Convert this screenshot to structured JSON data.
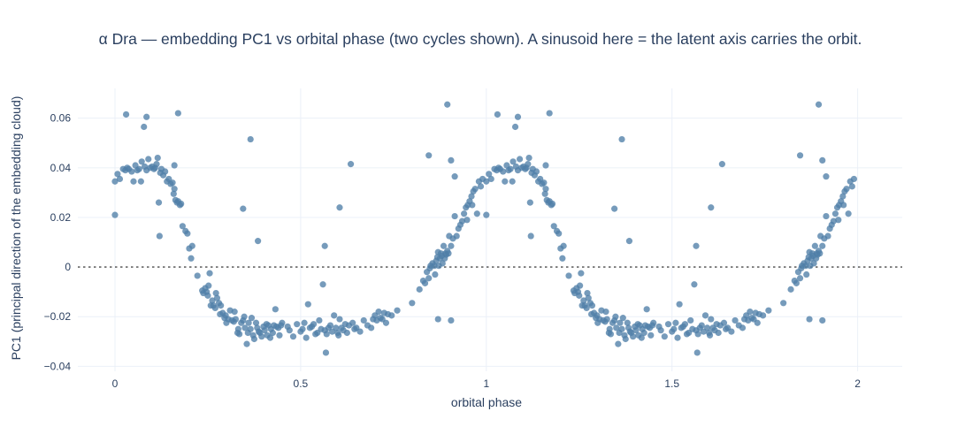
{
  "chart_data": {
    "type": "scatter",
    "title": "α Dra — embedding PC1 vs orbital phase (two cycles shown). A sinusoid here = the latent axis carries the orbit.",
    "xlabel": "orbital phase",
    "ylabel": "PC1 (principal direction of the embedding cloud)",
    "xlim": [
      -0.1,
      2.12
    ],
    "ylim": [
      -0.042,
      0.072
    ],
    "x_ticks": [
      0,
      0.5,
      1,
      1.5,
      2
    ],
    "x_tick_labels": [
      "0",
      "0.5",
      "1",
      "1.5",
      "2"
    ],
    "y_ticks": [
      -0.04,
      -0.02,
      0,
      0.02,
      0.04,
      0.06
    ],
    "y_tick_labels": [
      "−0.04",
      "−0.02",
      "0",
      "0.02",
      "0.04",
      "0.06"
    ],
    "grid": true,
    "reference_line": {
      "y": 0,
      "style": "dotted"
    },
    "marker_color": "#4f7fa8",
    "series": [
      {
        "points": [
          [
            0.0,
            0.0345
          ],
          [
            0.0,
            0.021
          ],
          [
            0.007,
            0.0375
          ],
          [
            0.013,
            0.0355
          ],
          [
            0.022,
            0.0395
          ],
          [
            0.028,
            0.039
          ],
          [
            0.033,
            0.04
          ],
          [
            0.037,
            0.0395
          ],
          [
            0.045,
            0.0385
          ],
          [
            0.05,
            0.0345
          ],
          [
            0.055,
            0.041
          ],
          [
            0.06,
            0.039
          ],
          [
            0.065,
            0.0395
          ],
          [
            0.07,
            0.0345
          ],
          [
            0.072,
            0.0425
          ],
          [
            0.08,
            0.0405
          ],
          [
            0.085,
            0.039
          ],
          [
            0.09,
            0.0435
          ],
          [
            0.095,
            0.04
          ],
          [
            0.1,
            0.0405
          ],
          [
            0.105,
            0.0395
          ],
          [
            0.108,
            0.04
          ],
          [
            0.112,
            0.0415
          ],
          [
            0.115,
            0.044
          ],
          [
            0.118,
            0.026
          ],
          [
            0.122,
            0.038
          ],
          [
            0.125,
            0.0395
          ],
          [
            0.13,
            0.037
          ],
          [
            0.135,
            0.0385
          ],
          [
            0.14,
            0.0345
          ],
          [
            0.145,
            0.0355
          ],
          [
            0.15,
            0.0335
          ],
          [
            0.155,
            0.034
          ],
          [
            0.158,
            0.0295
          ],
          [
            0.16,
            0.041
          ],
          [
            0.163,
            0.027
          ],
          [
            0.167,
            0.026
          ],
          [
            0.17,
            0.0265
          ],
          [
            0.175,
            0.025
          ],
          [
            0.178,
            0.0255
          ],
          [
            0.182,
            0.0165
          ],
          [
            0.19,
            0.0145
          ],
          [
            0.195,
            0.0135
          ],
          [
            0.2,
            0.0075
          ],
          [
            0.205,
            0.0035
          ],
          [
            0.208,
            0.0085
          ],
          [
            0.222,
            -0.0035
          ],
          [
            0.235,
            -0.0095
          ],
          [
            0.238,
            -0.0105
          ],
          [
            0.243,
            -0.0085
          ],
          [
            0.247,
            -0.01
          ],
          [
            0.25,
            -0.0115
          ],
          [
            0.252,
            -0.0075
          ],
          [
            0.255,
            -0.0025
          ],
          [
            0.258,
            -0.0155
          ],
          [
            0.262,
            -0.0135
          ],
          [
            0.265,
            -0.0155
          ],
          [
            0.27,
            -0.0165
          ],
          [
            0.272,
            -0.0105
          ],
          [
            0.275,
            -0.0125
          ],
          [
            0.28,
            -0.0145
          ],
          [
            0.283,
            -0.019
          ],
          [
            0.285,
            -0.0155
          ],
          [
            0.29,
            -0.0185
          ],
          [
            0.295,
            -0.0205
          ],
          [
            0.298,
            -0.0195
          ],
          [
            0.3,
            -0.0225
          ],
          [
            0.305,
            -0.021
          ],
          [
            0.31,
            -0.0175
          ],
          [
            0.315,
            -0.0215
          ],
          [
            0.32,
            -0.022
          ],
          [
            0.322,
            -0.018
          ],
          [
            0.325,
            -0.021
          ],
          [
            0.33,
            -0.0265
          ],
          [
            0.332,
            -0.025
          ],
          [
            0.335,
            -0.027
          ],
          [
            0.34,
            -0.0225
          ],
          [
            0.345,
            -0.0215
          ],
          [
            0.348,
            -0.02
          ],
          [
            0.35,
            -0.0245
          ],
          [
            0.355,
            -0.031
          ],
          [
            0.358,
            -0.0265
          ],
          [
            0.36,
            -0.0225
          ],
          [
            0.365,
            -0.025
          ],
          [
            0.368,
            -0.0205
          ],
          [
            0.372,
            -0.0275
          ],
          [
            0.375,
            -0.029
          ],
          [
            0.38,
            -0.0225
          ],
          [
            0.383,
            -0.0245
          ],
          [
            0.387,
            -0.026
          ],
          [
            0.39,
            -0.0265
          ],
          [
            0.395,
            -0.028
          ],
          [
            0.4,
            -0.024
          ],
          [
            0.403,
            -0.0255
          ],
          [
            0.408,
            -0.023
          ],
          [
            0.41,
            -0.0275
          ],
          [
            0.413,
            -0.0235
          ],
          [
            0.418,
            -0.0285
          ],
          [
            0.42,
            -0.025
          ],
          [
            0.425,
            -0.0265
          ],
          [
            0.428,
            -0.0235
          ],
          [
            0.432,
            -0.017
          ],
          [
            0.435,
            -0.024
          ],
          [
            0.44,
            -0.0245
          ],
          [
            0.443,
            -0.0275
          ],
          [
            0.447,
            -0.0235
          ],
          [
            0.45,
            -0.0225
          ],
          [
            0.465,
            -0.024
          ],
          [
            0.47,
            -0.0255
          ],
          [
            0.48,
            -0.028
          ],
          [
            0.49,
            -0.023
          ],
          [
            0.5,
            -0.026
          ],
          [
            0.505,
            -0.025
          ],
          [
            0.51,
            -0.0225
          ],
          [
            0.515,
            -0.0285
          ],
          [
            0.52,
            -0.015
          ],
          [
            0.525,
            -0.0245
          ],
          [
            0.53,
            -0.024
          ],
          [
            0.535,
            -0.023
          ],
          [
            0.54,
            -0.027
          ],
          [
            0.545,
            -0.0265
          ],
          [
            0.55,
            -0.0215
          ],
          [
            0.555,
            -0.025
          ],
          [
            0.56,
            -0.007
          ],
          [
            0.565,
            -0.0255
          ],
          [
            0.568,
            -0.0345
          ],
          [
            0.57,
            -0.027
          ],
          [
            0.575,
            -0.0245
          ],
          [
            0.58,
            -0.0235
          ],
          [
            0.585,
            -0.026
          ],
          [
            0.59,
            -0.0195
          ],
          [
            0.595,
            -0.0245
          ],
          [
            0.6,
            -0.0265
          ],
          [
            0.602,
            -0.0275
          ],
          [
            0.605,
            -0.021
          ],
          [
            0.61,
            -0.0245
          ],
          [
            0.615,
            -0.0255
          ],
          [
            0.62,
            -0.023
          ],
          [
            0.625,
            -0.0265
          ],
          [
            0.63,
            -0.0235
          ],
          [
            0.64,
            -0.0225
          ],
          [
            0.645,
            -0.025
          ],
          [
            0.65,
            -0.0245
          ],
          [
            0.66,
            -0.026
          ],
          [
            0.67,
            -0.0215
          ],
          [
            0.68,
            -0.0235
          ],
          [
            0.69,
            -0.0245
          ],
          [
            0.695,
            -0.021
          ],
          [
            0.7,
            -0.0195
          ],
          [
            0.705,
            -0.0215
          ],
          [
            0.71,
            -0.018
          ],
          [
            0.715,
            -0.0205
          ],
          [
            0.72,
            -0.021
          ],
          [
            0.725,
            -0.0185
          ],
          [
            0.73,
            -0.0225
          ],
          [
            0.735,
            -0.019
          ],
          [
            0.745,
            -0.0195
          ],
          [
            0.76,
            -0.0175
          ],
          [
            0.8,
            -0.0145
          ],
          [
            0.82,
            -0.009
          ],
          [
            0.83,
            -0.0055
          ],
          [
            0.835,
            -0.0065
          ],
          [
            0.84,
            -0.002
          ],
          [
            0.845,
            -0.0045
          ],
          [
            0.848,
            -0.0005
          ],
          [
            0.85,
            0.0005
          ],
          [
            0.855,
            0.0015
          ],
          [
            0.86,
            0.0005
          ],
          [
            0.862,
            -0.003
          ],
          [
            0.865,
            0.0025
          ],
          [
            0.868,
            0.004
          ],
          [
            0.87,
            0.006
          ],
          [
            0.872,
            0.0005
          ],
          [
            0.875,
            0.0035
          ],
          [
            0.878,
            0.0055
          ],
          [
            0.88,
            0.0045
          ],
          [
            0.882,
            0.0015
          ],
          [
            0.885,
            0.0085
          ],
          [
            0.888,
            0.0035
          ],
          [
            0.89,
            0.0055
          ],
          [
            0.892,
            0.005
          ],
          [
            0.895,
            0.0065
          ],
          [
            0.898,
            0.0055
          ],
          [
            0.9,
            0.0125
          ],
          [
            0.905,
            0.0085
          ],
          [
            0.91,
            0.0115
          ],
          [
            0.915,
            0.0205
          ],
          [
            0.92,
            0.0125
          ],
          [
            0.925,
            0.0155
          ],
          [
            0.93,
            0.017
          ],
          [
            0.935,
            0.0185
          ],
          [
            0.94,
            0.0215
          ],
          [
            0.945,
            0.024
          ],
          [
            0.948,
            0.019
          ],
          [
            0.95,
            0.025
          ],
          [
            0.955,
            0.0265
          ],
          [
            0.96,
            0.0285
          ],
          [
            0.962,
            0.025
          ],
          [
            0.965,
            0.0305
          ],
          [
            0.97,
            0.0315
          ],
          [
            0.975,
            0.0215
          ],
          [
            0.98,
            0.0345
          ],
          [
            0.985,
            0.0325
          ],
          [
            0.99,
            0.0355
          ],
          [
            0.16,
            0.0315
          ],
          [
            0.12,
            0.0125
          ],
          [
            0.03,
            0.0615
          ],
          [
            0.085,
            0.0605
          ],
          [
            0.078,
            0.0565
          ],
          [
            0.17,
            0.062
          ],
          [
            0.365,
            0.0515
          ],
          [
            0.345,
            0.0235
          ],
          [
            0.385,
            0.0105
          ],
          [
            0.565,
            0.0085
          ],
          [
            0.605,
            0.024
          ],
          [
            0.635,
            0.0415
          ],
          [
            0.845,
            0.045
          ],
          [
            0.895,
            0.0655
          ],
          [
            0.87,
            -0.021
          ],
          [
            0.905,
            -0.0215
          ],
          [
            0.915,
            0.0365
          ],
          [
            0.905,
            0.043
          ]
        ]
      }
    ]
  }
}
